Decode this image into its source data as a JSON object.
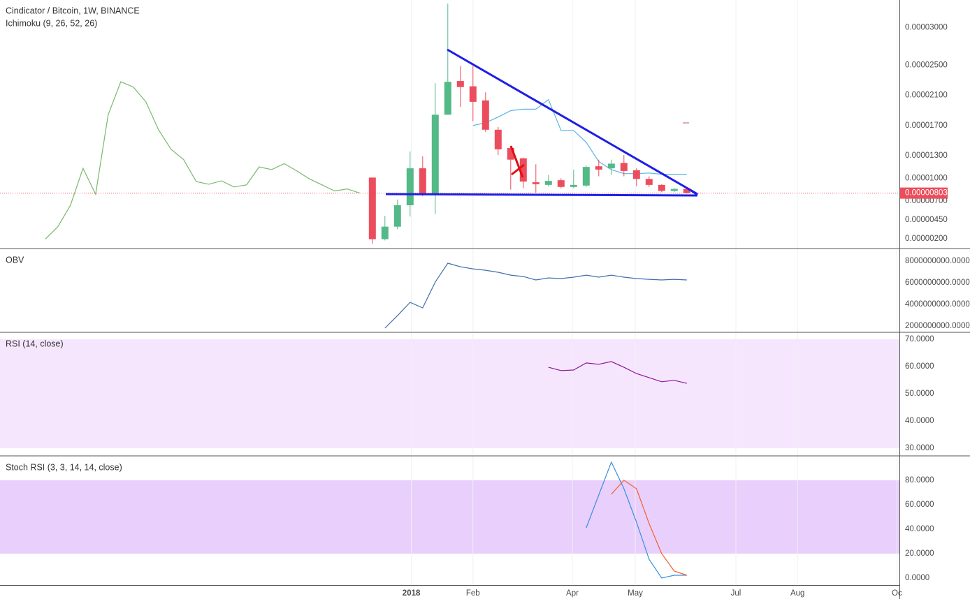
{
  "chart_data": [
    {
      "type": "candlestick",
      "title": "Cindicator / Bitcoin, 1W, BINANCE",
      "subtitle": "Ichimoku (9, 26, 52, 26)",
      "x": [
        0,
        1,
        2,
        3,
        4,
        5,
        6,
        7,
        8,
        9,
        10,
        11,
        12,
        13,
        14,
        15,
        16,
        17,
        18,
        19,
        20,
        21,
        22,
        23,
        24,
        25
      ],
      "open": [
        1.009e-05,
        1.92e-06,
        3.58e-06,
        6.42e-06,
        1.132e-05,
        7.88e-06,
        1.843e-05,
        2.29e-05,
        2.22e-05,
        2.033e-05,
        1.644e-05,
        1.402e-05,
        1.265e-05,
        9.47e-06,
        9.12e-06,
        9.74e-06,
        8.85e-06,
        9.03e-06,
        1.159e-05,
        1.132e-05,
        1.203e-05,
        1.106e-05,
        9.91e-06,
        9.12e-06,
        8.32e-06,
        8.59e-06
      ],
      "high": [
        1.009e-05,
        5e-06,
        7.18e-06,
        1.356e-05,
        1.291e-05,
        2.26e-05,
        3.316e-05,
        2.49e-05,
        2.49e-05,
        2.14e-05,
        1.681e-05,
        1.43e-05,
        1.274e-05,
        1.185e-05,
        1.044e-05,
        1e-05,
        1.115e-05,
        1.168e-05,
        1.247e-05,
        1.247e-05,
        1.309e-05,
        1.132e-05,
        1.026e-05,
        9.21e-06,
        8.68e-06,
        8.68e-06
      ],
      "low": [
        1.33e-06,
        1.75e-06,
        3.25e-06,
        4.92e-06,
        7.62e-06,
        5.25e-06,
        1.843e-05,
        1.948e-05,
        1.757e-05,
        1.616e-05,
        1.309e-05,
        8.5e-06,
        8.68e-06,
        8.06e-06,
        8.94e-06,
        8.68e-06,
        8.68e-06,
        8.85e-06,
        1.026e-05,
        1.044e-05,
        1.026e-05,
        8.94e-06,
        8.85e-06,
        8.15e-06,
        8.15e-06,
        7.97e-06
      ],
      "close": [
        1.92e-06,
        3.58e-06,
        6.42e-06,
        1.132e-05,
        7.88e-06,
        1.843e-05,
        2.28e-05,
        2.21e-05,
        2.014e-05,
        1.644e-05,
        1.384e-05,
        1.247e-05,
        9.56e-06,
        9.21e-06,
        9.65e-06,
        8.85e-06,
        9.12e-06,
        1.15e-05,
        1.115e-05,
        1.194e-05,
        1.097e-05,
        9.91e-06,
        9.12e-06,
        8.32e-06,
        8.59e-06,
        8.03e-06
      ],
      "up_color": "#53b987",
      "down_color": "#eb4d5c",
      "series": [
        {
          "color": "#7ab86b",
          "x": [
            -26,
            -25,
            -24,
            -23,
            -22,
            -21,
            -20,
            -19,
            -18,
            -17,
            -16,
            -15,
            -14,
            -13,
            -12,
            -11,
            -10,
            -9,
            -8,
            -7,
            -6,
            -5,
            -4,
            -3,
            -2,
            -1
          ],
          "values": [
            1.92e-06,
            3.58e-06,
            6.42e-06,
            1.132e-05,
            7.88e-06,
            1.843e-05,
            2.28e-05,
            2.21e-05,
            2.014e-05,
            1.644e-05,
            1.384e-05,
            1.247e-05,
            9.56e-06,
            9.21e-06,
            9.65e-06,
            8.85e-06,
            9.12e-06,
            1.15e-05,
            1.115e-05,
            1.194e-05,
            1.097e-05,
            9.91e-06,
            9.12e-06,
            8.32e-06,
            8.59e-06,
            8.03e-06
          ]
        },
        {
          "color": "#5ab4e6",
          "x": [
            8,
            9,
            10,
            11,
            12,
            13,
            14,
            15,
            16,
            17,
            18,
            19,
            20,
            21,
            22,
            23,
            24,
            25
          ],
          "values": [
            1.7e-05,
            1.737e-05,
            1.812e-05,
            1.897e-05,
            1.916e-05,
            1.916e-05,
            2.043e-05,
            1.635e-05,
            1.635e-05,
            1.477e-05,
            1.221e-05,
            1.115e-05,
            1.062e-05,
            1.062e-05,
            1.07e-05,
            1.053e-05,
            1.053e-05,
            1.053e-05
          ]
        }
      ],
      "last_price": {
        "value": 8.03e-06,
        "label": "0.00000803"
      },
      "last_price_color": "#eb4d5c",
      "xlim": [
        -29.6,
        41.9
      ],
      "ylim": [
        7.7e-07,
        3.365e-05
      ],
      "yticks": [
        {
          "value": 3e-05,
          "label": "0.00003000"
        },
        {
          "value": 2.5e-05,
          "label": "0.00002500"
        },
        {
          "value": 2.1e-05,
          "label": "0.00002100"
        },
        {
          "value": 1.7e-05,
          "label": "0.00001700"
        },
        {
          "value": 1.3e-05,
          "label": "0.00001300"
        },
        {
          "value": 1e-05,
          "label": "0.00001000"
        },
        {
          "value": 7e-06,
          "label": "0.00000700"
        },
        {
          "value": 4.5e-06,
          "label": "0.00000450"
        },
        {
          "value": 2e-06,
          "label": "0.00000200"
        }
      ],
      "grid": true
    },
    {
      "type": "line",
      "title": "OBV",
      "series": [
        {
          "color": "#3f6fae",
          "x": [
            1,
            2,
            3,
            4,
            5,
            6,
            7,
            8,
            9,
            10,
            11,
            12,
            13,
            14,
            15,
            16,
            17,
            18,
            19,
            20,
            21,
            22,
            23,
            24,
            25
          ],
          "values": [
            1810000000,
            2970000000,
            4190000000,
            3680000000,
            6060000000,
            7810000000,
            7480000000,
            7290000000,
            7160000000,
            6970000000,
            6710000000,
            6580000000,
            6260000000,
            6450000000,
            6390000000,
            6520000000,
            6710000000,
            6520000000,
            6710000000,
            6520000000,
            6390000000,
            6320000000,
            6260000000,
            6320000000,
            6260000000
          ]
        }
      ],
      "xlim": [
        -29.6,
        41.9
      ],
      "ylim": [
        1490000000,
        9100000000
      ],
      "yticks": [
        {
          "value": 8000000000,
          "label": "8000000000.0000"
        },
        {
          "value": 6000000000,
          "label": "6000000000.0000"
        },
        {
          "value": 4000000000,
          "label": "4000000000.0000"
        },
        {
          "value": 2000000000,
          "label": "2000000000.0000"
        }
      ],
      "grid": true
    },
    {
      "type": "line",
      "title": "RSI (14, close)",
      "series": [
        {
          "color": "#8e1599",
          "x": [
            14,
            15,
            16,
            17,
            18,
            19,
            20,
            21,
            22,
            23,
            24,
            25
          ],
          "values": [
            59.7,
            58.5,
            58.7,
            61.3,
            60.8,
            61.8,
            59.7,
            57.4,
            55.9,
            54.4,
            54.9,
            53.8
          ]
        }
      ],
      "band": [
        30,
        70
      ],
      "band_color": "#f5e6fd",
      "xlim": [
        -29.6,
        41.9
      ],
      "ylim": [
        27.4,
        72.3
      ],
      "yticks": [
        {
          "value": 70,
          "label": "70.0000"
        },
        {
          "value": 60,
          "label": "60.0000"
        },
        {
          "value": 50,
          "label": "50.0000"
        },
        {
          "value": 40,
          "label": "40.0000"
        },
        {
          "value": 30,
          "label": "30.0000"
        }
      ],
      "grid": true
    },
    {
      "type": "line",
      "title": "Stoch RSI (3, 3, 14, 14, close)",
      "series": [
        {
          "color": "#3c8fe0",
          "x": [
            17,
            18,
            19,
            20,
            21,
            22,
            23,
            24,
            25
          ],
          "values": [
            41.1,
            68,
            94.9,
            73.1,
            45.7,
            15.4,
            0,
            2.3,
            2.3
          ]
        },
        {
          "color": "#f4602c",
          "x": [
            19,
            20,
            21,
            22,
            23,
            24,
            25
          ],
          "values": [
            68.6,
            80,
            73.1,
            44.6,
            20,
            5.7,
            2.3
          ]
        }
      ],
      "band": [
        20,
        80
      ],
      "band_color": "#e9cffb",
      "xlim": [
        -29.6,
        41.9
      ],
      "ylim": [
        -5.7,
        99.4
      ],
      "yticks": [
        {
          "value": 80,
          "label": "80.0000"
        },
        {
          "value": 60,
          "label": "60.0000"
        },
        {
          "value": 40,
          "label": "40.0000"
        },
        {
          "value": 20,
          "label": "20.0000"
        },
        {
          "value": 0,
          "label": "0.0000"
        }
      ],
      "xticks": [
        {
          "value": 3.1,
          "label": "2018"
        },
        {
          "value": 8,
          "label": "Feb"
        },
        {
          "value": 15.9,
          "label": "Apr"
        },
        {
          "value": 20.9,
          "label": "May"
        },
        {
          "value": 28.9,
          "label": "Jul"
        },
        {
          "value": 33.8,
          "label": "Aug"
        },
        {
          "value": 41.7,
          "label": "Oc"
        }
      ],
      "grid": true
    }
  ]
}
